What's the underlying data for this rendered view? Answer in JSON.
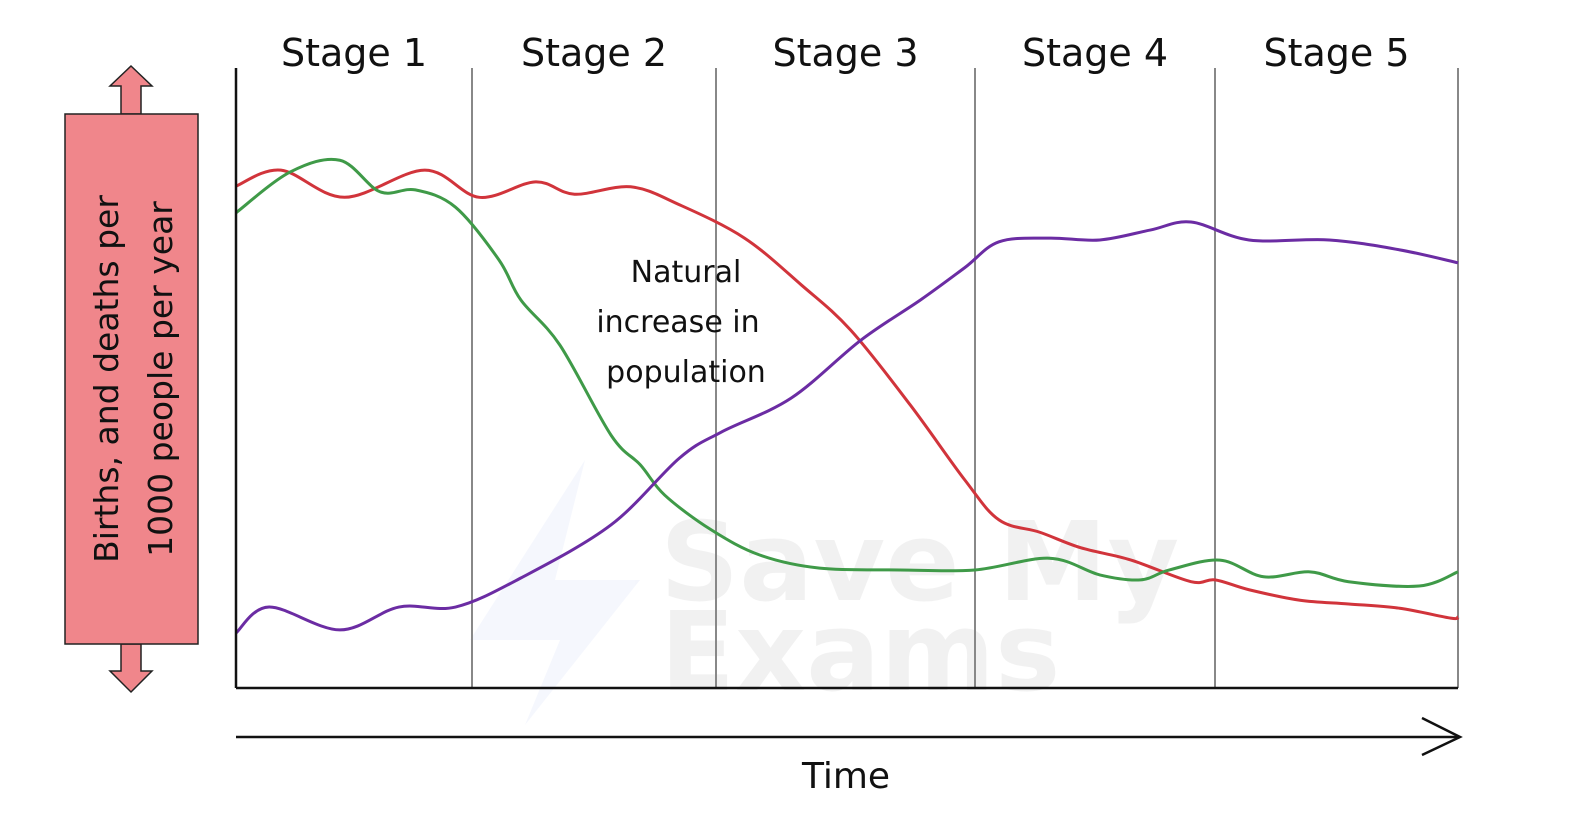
{
  "chart_data": {
    "type": "line",
    "title": "",
    "xlabel": "Time",
    "ylabel": [
      "Births, and deaths per",
      "1000 people per year"
    ],
    "stages": [
      "Stage 1",
      "Stage 2",
      "Stage 3",
      "Stage 4",
      "Stage 5"
    ],
    "annotation": [
      "Natural",
      "increase in",
      "population"
    ],
    "watermark": "Save My Exams",
    "xlim": [
      0,
      5
    ],
    "ylim": [
      0,
      100
    ],
    "grid": false,
    "colors": {
      "red": "#d1343b",
      "green": "#3f9a48",
      "purple": "#6b2ca3",
      "label_box": "#f0868b"
    },
    "series": [
      {
        "color": "#d1343b",
        "x": [
          0,
          0.19,
          0.46,
          0.8,
          1.03,
          1.26,
          1.42,
          1.65,
          1.85,
          2.11,
          2.33,
          2.52,
          2.75,
          2.96,
          3.1,
          3.27,
          3.44,
          3.65,
          3.9,
          4.0,
          4.14,
          4.35,
          4.55,
          4.76,
          4.97,
          5.0
        ],
        "y": [
          81.2,
          83.8,
          79.4,
          83.8,
          79.4,
          81.9,
          79.9,
          81.1,
          78.2,
          72.8,
          65.2,
          57.9,
          45.8,
          33.7,
          27.2,
          25.2,
          22.7,
          20.7,
          17.2,
          17.5,
          15.9,
          14.2,
          13.6,
          12.9,
          11.3,
          11.5
        ]
      },
      {
        "color": "#3f9a48",
        "x": [
          0,
          0.23,
          0.44,
          0.61,
          0.76,
          0.93,
          1.11,
          1.2,
          1.36,
          1.57,
          1.69,
          1.79,
          1.98,
          2.17,
          2.4,
          2.71,
          3.0,
          3.31,
          3.52,
          3.69,
          3.81,
          4.02,
          4.2,
          4.39,
          4.55,
          4.84,
          5.0
        ],
        "y": [
          76.9,
          83.5,
          85.4,
          80.3,
          80.6,
          77.8,
          69.3,
          62.8,
          55.5,
          40.9,
          36.1,
          31.2,
          25.6,
          21.5,
          19.4,
          19.1,
          19.1,
          21.0,
          18.3,
          17.5,
          19.1,
          20.7,
          18.0,
          18.8,
          17.2,
          16.5,
          18.8
        ]
      },
      {
        "color": "#6b2ca3",
        "x": [
          0,
          0.14,
          0.44,
          0.69,
          0.93,
          1.2,
          1.57,
          1.85,
          2.02,
          2.29,
          2.56,
          2.79,
          2.96,
          3.1,
          3.31,
          3.52,
          3.73,
          3.9,
          4.14,
          4.47,
          4.76,
          5.0
        ],
        "y": [
          8.9,
          13.1,
          9.4,
          13.1,
          13.1,
          17.8,
          26.4,
          37.2,
          41.4,
          46.9,
          56.3,
          62.8,
          68.0,
          72.2,
          72.8,
          72.5,
          74.1,
          75.4,
          72.5,
          72.5,
          70.9,
          68.8
        ]
      }
    ]
  }
}
